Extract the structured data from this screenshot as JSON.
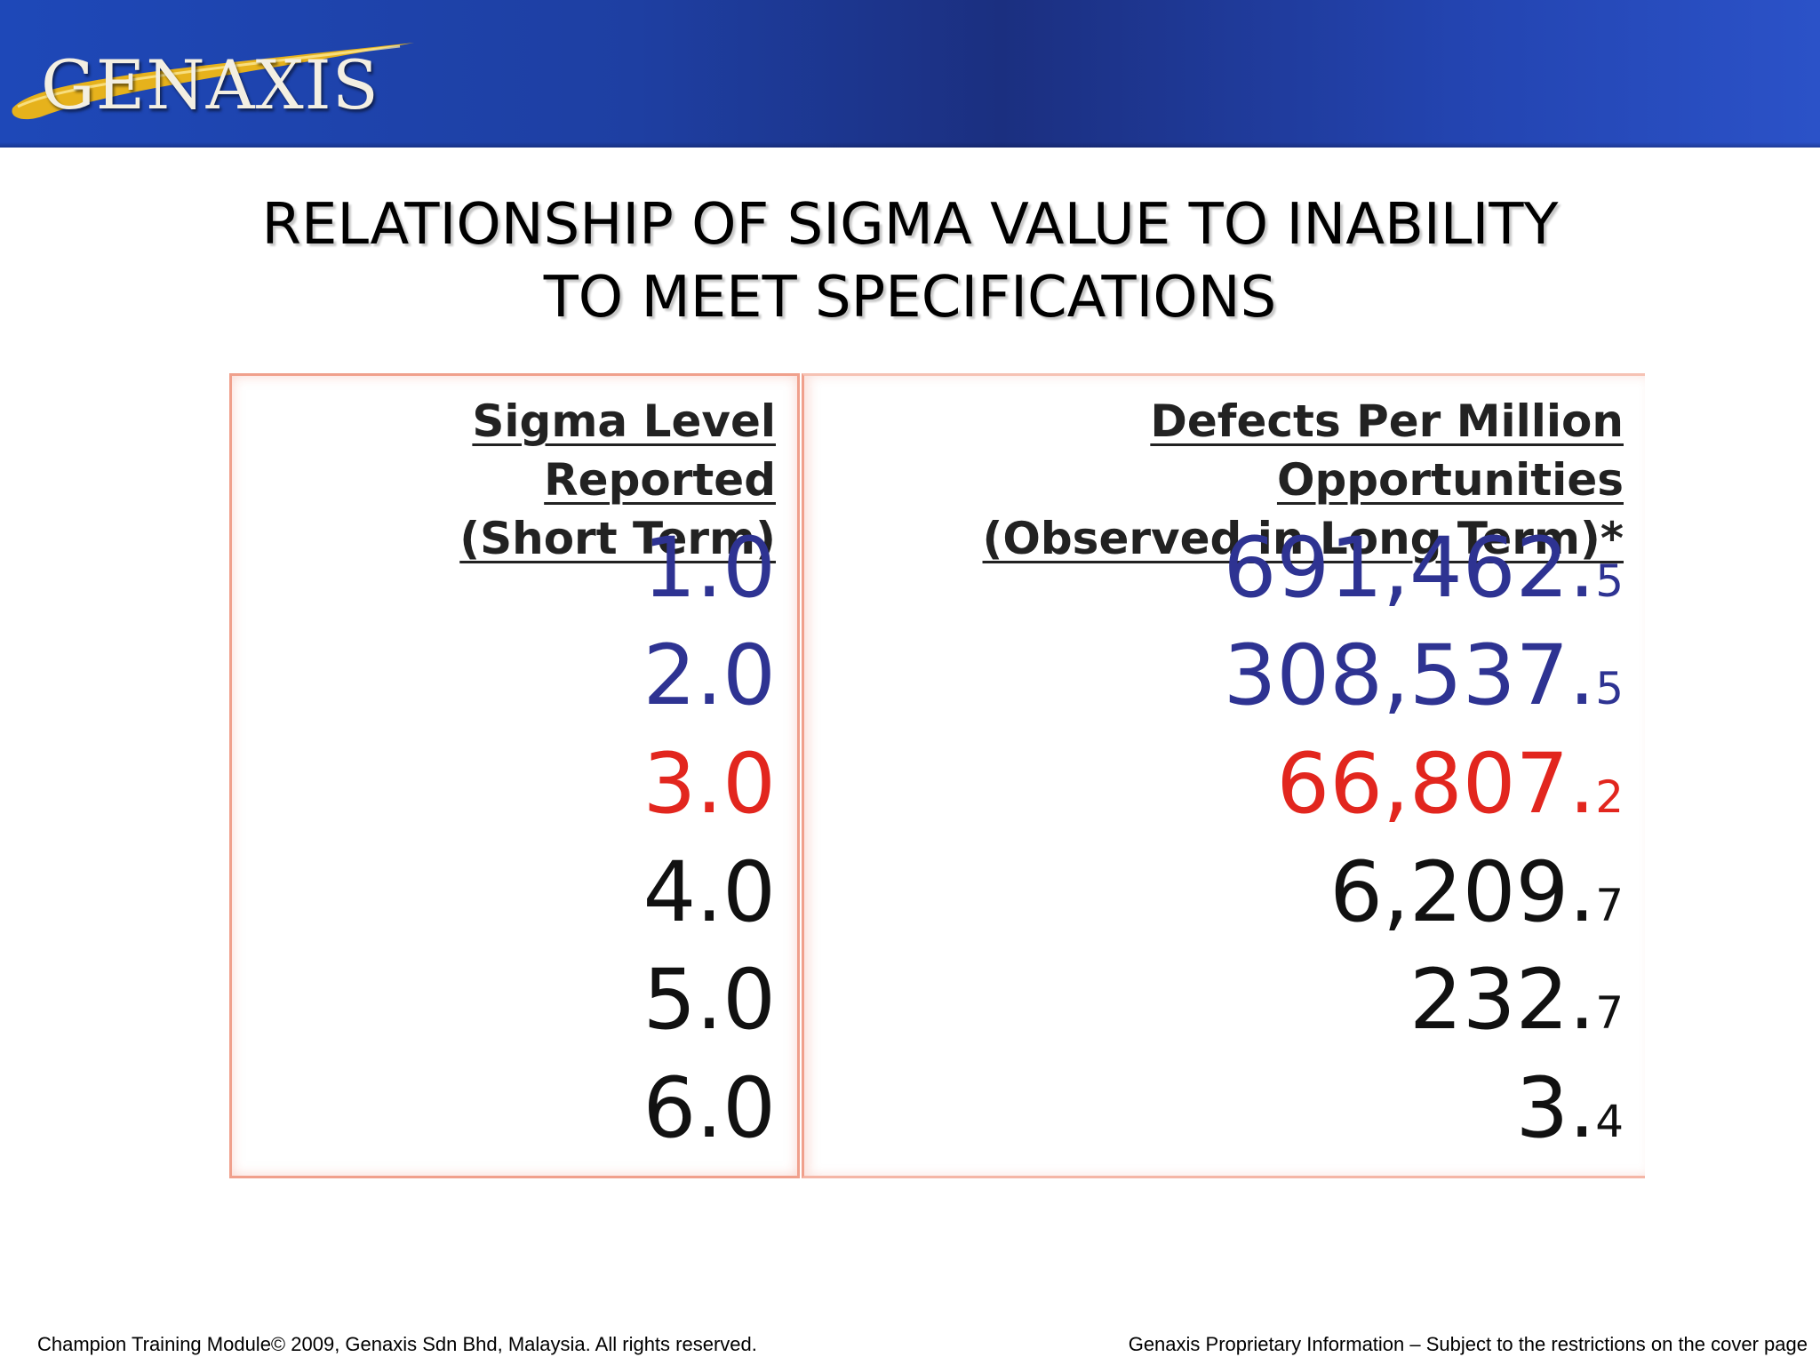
{
  "header": {
    "logo_text": "GENAXIS",
    "colors": {
      "bar": "#1e3fa2",
      "swoosh": "#e6b21c"
    }
  },
  "title": {
    "line1": "RELATIONSHIP OF SIGMA VALUE TO INABILITY",
    "line2": "TO MEET SPECIFICATIONS"
  },
  "table": {
    "left_header": {
      "line1": "Sigma Level Reported",
      "line2": "(Short Term)"
    },
    "right_header": {
      "line1": "Defects Per Million Opportunities",
      "line2": "(Observed in Long Term)*"
    },
    "rows": [
      {
        "sigma": "1.0",
        "dpmo_main": "691,462.",
        "dpmo_sub": "5",
        "color": "#2e3392"
      },
      {
        "sigma": "2.0",
        "dpmo_main": "308,537.",
        "dpmo_sub": "5",
        "color": "#2e3392"
      },
      {
        "sigma": "3.0",
        "dpmo_main": "66,807.",
        "dpmo_sub": "2",
        "color": "#e2261e"
      },
      {
        "sigma": "4.0",
        "dpmo_main": "6,209.",
        "dpmo_sub": "7",
        "color": "#111111"
      },
      {
        "sigma": "5.0",
        "dpmo_main": "232.",
        "dpmo_sub": "7",
        "color": "#111111"
      },
      {
        "sigma": "6.0",
        "dpmo_main": "3.",
        "dpmo_sub": "4",
        "color": "#111111"
      }
    ]
  },
  "footer": {
    "left": "Champion Training Module© 2009, Genaxis Sdn Bhd, Malaysia. All rights reserved.",
    "right": "Genaxis Proprietary Information – Subject to the restrictions on the cover page"
  }
}
